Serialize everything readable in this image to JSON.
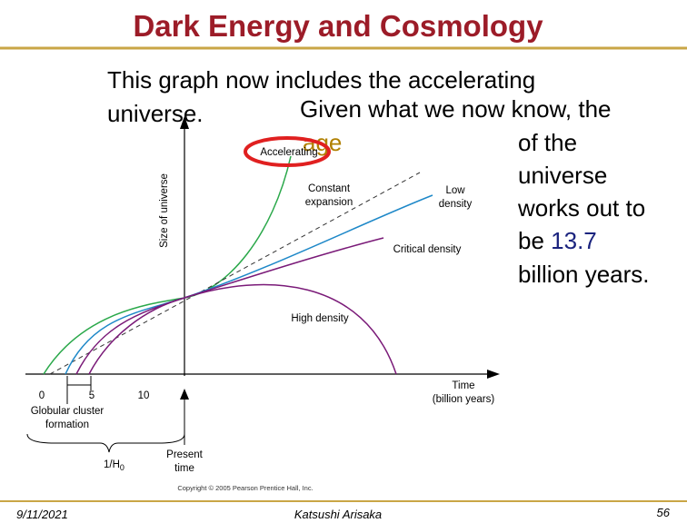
{
  "title": "Dark Energy and Cosmology",
  "body": {
    "line1": "This graph now includes the accelerating",
    "line2": "universe.",
    "line3": "Given what we now know, the",
    "age": "age",
    "side": [
      "of the",
      "universe",
      "works out to"
    ],
    "be": "be",
    "number": "13.7",
    "last": "billion years."
  },
  "figure": {
    "y_axis_label": "Size of universe",
    "x_axis_label": [
      "Time",
      "(billion years)"
    ],
    "x_ticks": [
      "0",
      "5",
      "10"
    ],
    "curves": {
      "accelerating": "Accelerating",
      "constant": [
        "Constant",
        "expansion"
      ],
      "low": [
        "Low",
        "density"
      ],
      "critical": "Critical density",
      "high": "High density"
    },
    "globular": [
      "Globular cluster",
      "formation"
    ],
    "hubble": "1/H",
    "hubble_sub": "0",
    "present": [
      "Present",
      "time"
    ],
    "copyright": "Copyright © 2005 Pearson Prentice Hall, Inc."
  },
  "footer": {
    "date": "9/11/2021",
    "author": "Katsushi Arisaka",
    "page": "56"
  }
}
